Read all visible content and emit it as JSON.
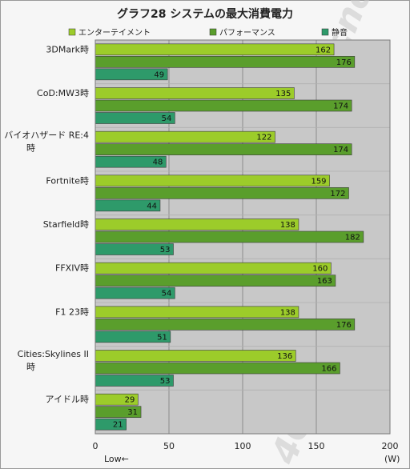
{
  "chart_data": {
    "type": "bar",
    "orientation": "horizontal",
    "title": "グラフ28 システムの最大消費電力",
    "categories": [
      [
        "3DMark時"
      ],
      [
        "CoD:MW3時"
      ],
      [
        "バイオハザード RE:4",
        "時"
      ],
      [
        "Fortnite時"
      ],
      [
        "Starfield時"
      ],
      [
        "FFXIV時"
      ],
      [
        "F1 23時"
      ],
      [
        "Cities:Skylines II",
        "時"
      ],
      [
        "アイドル時"
      ]
    ],
    "series": [
      {
        "name": "エンターテイメント",
        "color": "#9ccc2a",
        "values": [
          162,
          135,
          122,
          159,
          138,
          160,
          138,
          136,
          29
        ]
      },
      {
        "name": "パフォーマンス",
        "color": "#5a9e2c",
        "values": [
          176,
          174,
          174,
          172,
          182,
          163,
          176,
          166,
          31
        ]
      },
      {
        "name": "静音",
        "color": "#2e9a6a",
        "values": [
          49,
          54,
          48,
          44,
          53,
          54,
          51,
          53,
          21
        ]
      }
    ],
    "xlim": [
      0,
      200
    ],
    "xticks": [
      "0",
      "50",
      "100",
      "150",
      "200"
    ],
    "xticks_values": [
      0,
      50,
      100,
      150,
      200
    ],
    "unit_label": "(W)",
    "direction_label": "Low←",
    "grid": true,
    "legend_position": "top",
    "plot_background": "#c8c8c8",
    "watermark": "4Gamer.net"
  }
}
